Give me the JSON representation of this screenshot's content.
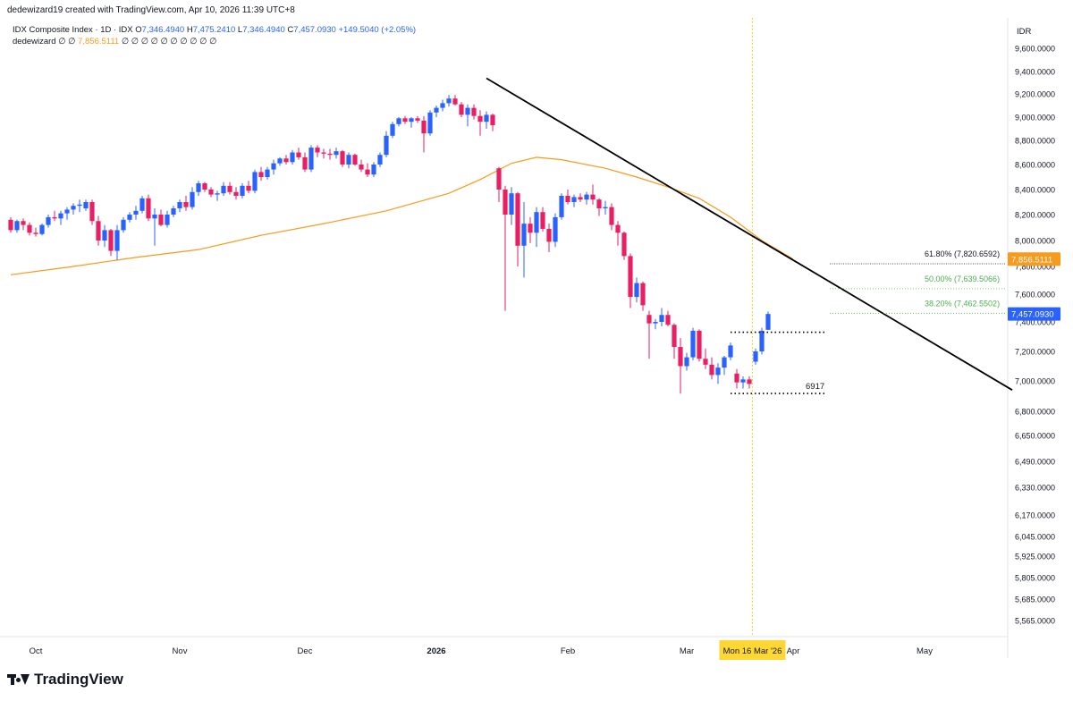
{
  "header": {
    "credit": "dedewizard19 created with TradingView.com, Apr 10, 2026 11:39 UTC+8"
  },
  "legend": {
    "symbol": "IDX Composite Index · 1D · IDX",
    "open_label": "O",
    "open": "7,346.4940",
    "high_label": "H",
    "high": "7,475.2410",
    "low_label": "L",
    "low": "7,346.4940",
    "close_label": "C",
    "close": "7,457.0930",
    "change": "+149.5040 (+2.05%)",
    "indicator_name": "dedewizard",
    "indicator_pre": "∅ ∅",
    "indicator_value": "7,856.5111",
    "indicator_post": "∅ ∅ ∅ ∅ ∅ ∅ ∅ ∅ ∅ ∅"
  },
  "brand": {
    "name": "TradingView"
  },
  "colors": {
    "up": "#2962ff",
    "down": "#e91e63",
    "ma": "#f89a1c",
    "fib": "#4caf50",
    "trend": "#000000",
    "crosshair": "#fdd835",
    "axis_text": "#131722"
  },
  "chart_data": {
    "type": "candlestick",
    "title": "IDX Composite Index · 1D · IDX",
    "currency": "IDR",
    "y_ticks": [
      9600,
      9400,
      9200,
      9000,
      8800,
      8600,
      8400,
      8200,
      8000,
      7800,
      7600,
      7400,
      7200,
      7000,
      6800,
      6650,
      6490,
      6330,
      6170,
      6045,
      5925,
      5805,
      5685,
      5565
    ],
    "y_tick_labels": [
      "9,600.0000",
      "9,400.0000",
      "9,200.0000",
      "9,000.0000",
      "8,800.0000",
      "8,600.0000",
      "8,400.0000",
      "8,200.0000",
      "8,000.0000",
      "7,800.0000",
      "7,600.0000",
      "7,400.0000",
      "7,200.0000",
      "7,000.0000",
      "6,800.0000",
      "6,650.0000",
      "6,490.0000",
      "6,330.0000",
      "6,170.0000",
      "6,045.0000",
      "5,925.0000",
      "5,805.0000",
      "5,685.0000",
      "5,565.0000"
    ],
    "x_axis_labels": [
      {
        "label": "Oct",
        "bar": 4
      },
      {
        "label": "Nov",
        "bar": 27
      },
      {
        "label": "Dec",
        "bar": 47
      },
      {
        "label": "2026",
        "bar": 68
      },
      {
        "label": "Feb",
        "bar": 89
      },
      {
        "label": "Mar",
        "bar": 108
      },
      {
        "label": "Apr",
        "bar": 125
      },
      {
        "label": "May",
        "bar": 146
      }
    ],
    "crosshair": {
      "bar": 118.5,
      "label": "Mon 16 Mar '26"
    },
    "candles": [
      [
        8160,
        8180,
        8060,
        8080
      ],
      [
        8080,
        8160,
        8060,
        8150
      ],
      [
        8150,
        8170,
        8080,
        8120
      ],
      [
        8120,
        8140,
        8040,
        8060
      ],
      [
        8060,
        8100,
        8030,
        8050
      ],
      [
        8050,
        8130,
        8040,
        8120
      ],
      [
        8120,
        8200,
        8100,
        8180
      ],
      [
        8180,
        8230,
        8150,
        8170
      ],
      [
        8170,
        8230,
        8120,
        8210
      ],
      [
        8210,
        8260,
        8160,
        8240
      ],
      [
        8240,
        8290,
        8200,
        8270
      ],
      [
        8270,
        8320,
        8220,
        8280
      ],
      [
        8250,
        8320,
        8230,
        8300
      ],
      [
        8300,
        8320,
        8120,
        8150
      ],
      [
        8150,
        8190,
        7960,
        8000
      ],
      [
        8000,
        8120,
        7950,
        8080
      ],
      [
        8080,
        8090,
        7880,
        7920
      ],
      [
        7920,
        8120,
        7850,
        8080
      ],
      [
        8080,
        8180,
        8060,
        8160
      ],
      [
        8160,
        8220,
        8140,
        8200
      ],
      [
        8200,
        8270,
        8160,
        8230
      ],
      [
        8230,
        8350,
        8210,
        8330
      ],
      [
        8330,
        8360,
        8150,
        8170
      ],
      [
        8170,
        8250,
        7960,
        8200
      ],
      [
        8200,
        8240,
        8110,
        8120
      ],
      [
        8120,
        8230,
        8100,
        8200
      ],
      [
        8200,
        8270,
        8180,
        8250
      ],
      [
        8250,
        8320,
        8220,
        8300
      ],
      [
        8300,
        8350,
        8230,
        8260
      ],
      [
        8260,
        8420,
        8240,
        8380
      ],
      [
        8380,
        8470,
        8350,
        8450
      ],
      [
        8450,
        8460,
        8380,
        8400
      ],
      [
        8400,
        8420,
        8340,
        8360
      ],
      [
        8360,
        8390,
        8310,
        8370
      ],
      [
        8370,
        8460,
        8350,
        8430
      ],
      [
        8430,
        8460,
        8360,
        8380
      ],
      [
        8380,
        8420,
        8320,
        8350
      ],
      [
        8350,
        8450,
        8330,
        8430
      ],
      [
        8430,
        8470,
        8370,
        8390
      ],
      [
        8390,
        8560,
        8370,
        8540
      ],
      [
        8540,
        8580,
        8470,
        8500
      ],
      [
        8500,
        8580,
        8480,
        8560
      ],
      [
        8560,
        8640,
        8520,
        8610
      ],
      [
        8610,
        8660,
        8590,
        8650
      ],
      [
        8650,
        8680,
        8600,
        8620
      ],
      [
        8620,
        8720,
        8600,
        8700
      ],
      [
        8700,
        8740,
        8640,
        8660
      ],
      [
        8660,
        8700,
        8540,
        8560
      ],
      [
        8560,
        8760,
        8540,
        8740
      ],
      [
        8740,
        8760,
        8660,
        8700
      ],
      [
        8700,
        8730,
        8650,
        8690
      ],
      [
        8690,
        8730,
        8640,
        8680
      ],
      [
        8680,
        8740,
        8650,
        8710
      ],
      [
        8710,
        8720,
        8580,
        8600
      ],
      [
        8600,
        8700,
        8570,
        8680
      ],
      [
        8680,
        8690,
        8590,
        8600
      ],
      [
        8600,
        8640,
        8540,
        8560
      ],
      [
        8560,
        8610,
        8500,
        8520
      ],
      [
        8520,
        8620,
        8500,
        8600
      ],
      [
        8600,
        8700,
        8580,
        8680
      ],
      [
        8680,
        8880,
        8660,
        8840
      ],
      [
        8840,
        8960,
        8820,
        8940
      ],
      [
        8940,
        9000,
        8920,
        8990
      ],
      [
        8990,
        9010,
        8940,
        8960
      ],
      [
        8960,
        9000,
        8910,
        8990
      ],
      [
        8990,
        9010,
        8950,
        8970
      ],
      [
        8970,
        9010,
        8700,
        8860
      ],
      [
        8860,
        9060,
        8840,
        9040
      ],
      [
        9040,
        9100,
        9000,
        9080
      ],
      [
        9080,
        9150,
        9050,
        9120
      ],
      [
        9120,
        9190,
        9090,
        9160
      ],
      [
        9160,
        9190,
        9100,
        9110
      ],
      [
        9110,
        9130,
        9000,
        9020
      ],
      [
        9020,
        9110,
        8920,
        9080
      ],
      [
        9080,
        9110,
        8980,
        9010
      ],
      [
        9010,
        9060,
        8840,
        8960
      ],
      [
        8960,
        9050,
        8900,
        9020
      ],
      [
        9020,
        9030,
        8880,
        8930
      ],
      [
        8570,
        8580,
        8300,
        8400
      ],
      [
        8400,
        8430,
        7480,
        8200
      ],
      [
        8200,
        8420,
        8120,
        8370
      ],
      [
        8370,
        8380,
        7800,
        7960
      ],
      [
        7960,
        8300,
        7720,
        8130
      ],
      [
        8130,
        8180,
        7980,
        8060
      ],
      [
        8060,
        8260,
        7950,
        8220
      ],
      [
        8220,
        8260,
        8070,
        8090
      ],
      [
        8090,
        8130,
        7910,
        7990
      ],
      [
        7990,
        8210,
        7950,
        8180
      ],
      [
        8180,
        8370,
        8160,
        8350
      ],
      [
        8350,
        8400,
        8280,
        8300
      ],
      [
        8300,
        8360,
        8260,
        8340
      ],
      [
        8340,
        8370,
        8300,
        8320
      ],
      [
        8320,
        8380,
        8280,
        8360
      ],
      [
        8360,
        8440,
        8280,
        8320
      ],
      [
        8320,
        8330,
        8190,
        8250
      ],
      [
        8250,
        8310,
        8200,
        8260
      ],
      [
        8260,
        8290,
        8080,
        8120
      ],
      [
        8120,
        8150,
        7960,
        8060
      ],
      [
        8060,
        8070,
        7850,
        7880
      ],
      [
        7880,
        7900,
        7500,
        7580
      ],
      [
        7580,
        7720,
        7540,
        7680
      ],
      [
        7680,
        7690,
        7480,
        7520
      ],
      [
        7450,
        7480,
        7150,
        7390
      ],
      [
        7390,
        7420,
        7350,
        7400
      ],
      [
        7400,
        7500,
        7370,
        7450
      ],
      [
        7450,
        7480,
        7370,
        7380
      ],
      [
        7380,
        7390,
        7150,
        7230
      ],
      [
        7230,
        7290,
        6917,
        7100
      ],
      [
        7100,
        7190,
        7070,
        7160
      ],
      [
        7160,
        7360,
        7140,
        7340
      ],
      [
        7340,
        7350,
        7130,
        7150
      ],
      [
        7150,
        7220,
        7080,
        7110
      ],
      [
        7110,
        7160,
        7010,
        7040
      ],
      [
        7040,
        7120,
        6980,
        7090
      ],
      [
        7090,
        7170,
        7040,
        7160
      ],
      [
        7160,
        7260,
        7140,
        7240
      ],
      [
        7050,
        7080,
        6950,
        6990
      ],
      [
        6990,
        7030,
        6950,
        7010
      ],
      [
        7010,
        7030,
        6950,
        6980
      ],
      [
        7130,
        7220,
        7110,
        7200
      ],
      [
        7200,
        7360,
        7180,
        7340
      ],
      [
        7346.494,
        7475.241,
        7346.494,
        7457.093
      ]
    ],
    "moving_average": {
      "name": "dedewizard",
      "points": [
        [
          0,
          7740
        ],
        [
          10,
          7800
        ],
        [
          20,
          7870
        ],
        [
          30,
          7930
        ],
        [
          40,
          8040
        ],
        [
          50,
          8130
        ],
        [
          60,
          8230
        ],
        [
          70,
          8370
        ],
        [
          75,
          8480
        ],
        [
          80,
          8610
        ],
        [
          84,
          8660
        ],
        [
          88,
          8640
        ],
        [
          95,
          8570
        ],
        [
          100,
          8500
        ],
        [
          105,
          8420
        ],
        [
          110,
          8330
        ],
        [
          115,
          8180
        ],
        [
          120,
          8000
        ],
        [
          125,
          7856.5
        ]
      ],
      "last_value": "7,856.5111"
    },
    "trendline": {
      "from": [
        76,
        9340
      ],
      "to": [
        160,
        6940
      ]
    },
    "support_lines": [
      {
        "from_bar": 115,
        "to_bar": 130,
        "value": 7330
      },
      {
        "from_bar": 115,
        "to_bar": 130,
        "value": 6917,
        "label": "6917"
      }
    ],
    "fibonacci": [
      {
        "label": "61.80% (7,820.6592)",
        "value": 7820.6592
      },
      {
        "label": "50.00% (7,639.5066)",
        "value": 7639.5066
      },
      {
        "label": "38.20% (7,462.5502)",
        "value": 7462.5502
      }
    ],
    "last_price_label": "7,457.0930",
    "ma_price_label": "7,856.5111"
  }
}
